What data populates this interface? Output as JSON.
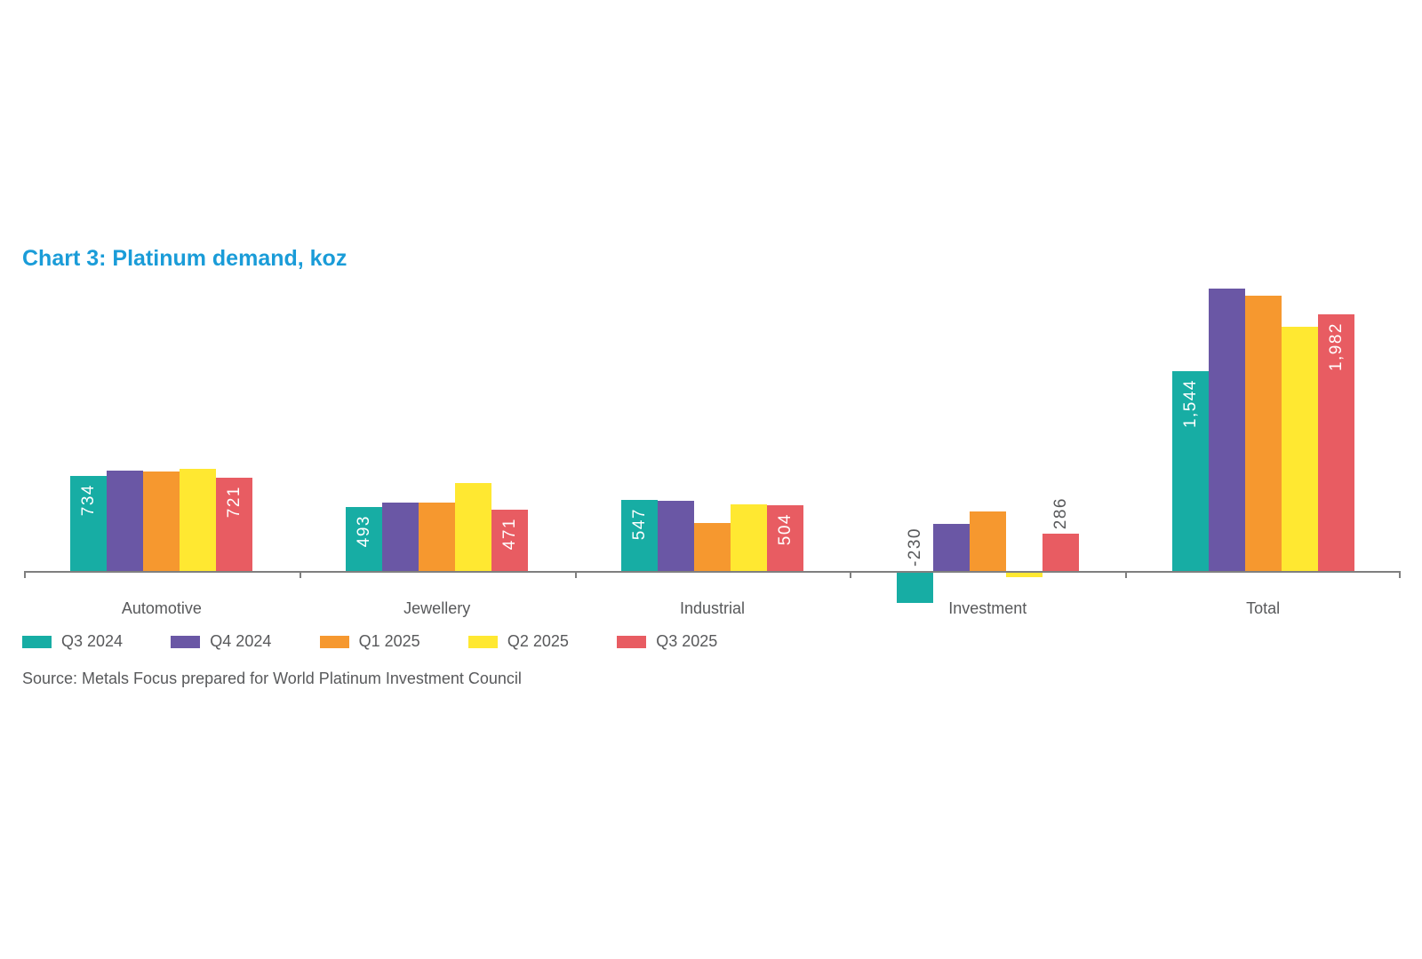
{
  "title": {
    "text": "Chart 3: Platinum demand, koz"
  },
  "source": "Source: Metals Focus prepared for World Platinum Investment Council",
  "colors": {
    "title": "#1A9CD8",
    "text": "#58595B",
    "axis": "#7F7F7F",
    "label_inside": "#FFFFFF",
    "label_outside": "#58595B"
  },
  "chart_data": {
    "type": "bar",
    "title": "Chart 3: Platinum demand, koz",
    "unit": "koz",
    "grid": false,
    "y_axis_shown": false,
    "legend_position": "bottom",
    "categories": [
      "Automotive",
      "Jewellery",
      "Industrial",
      "Investment",
      "Total"
    ],
    "series": [
      {
        "name": "Q3 2024",
        "color": "#17ADA4",
        "values": [
          734,
          493,
          547,
          -230,
          1544
        ]
      },
      {
        "name": "Q4 2024",
        "color": "#6A57A5",
        "values": [
          777,
          530,
          540,
          360,
          2180
        ]
      },
      {
        "name": "Q1 2025",
        "color": "#F6982F",
        "values": [
          770,
          525,
          370,
          460,
          2125
        ]
      },
      {
        "name": "Q2 2025",
        "color": "#FFE831",
        "values": [
          790,
          675,
          512,
          -35,
          1885
        ]
      },
      {
        "name": "Q3 2025",
        "color": "#E85C62",
        "values": [
          721,
          471,
          504,
          286,
          1982
        ]
      }
    ],
    "bar_labels": [
      {
        "series": 0,
        "category": 0,
        "text": "734",
        "placement": "inside"
      },
      {
        "series": 4,
        "category": 0,
        "text": "721",
        "placement": "inside"
      },
      {
        "series": 0,
        "category": 1,
        "text": "493",
        "placement": "inside"
      },
      {
        "series": 4,
        "category": 1,
        "text": "471",
        "placement": "inside"
      },
      {
        "series": 0,
        "category": 2,
        "text": "547",
        "placement": "inside"
      },
      {
        "series": 4,
        "category": 2,
        "text": "504",
        "placement": "inside"
      },
      {
        "series": 0,
        "category": 3,
        "text": "-230",
        "placement": "outside"
      },
      {
        "series": 4,
        "category": 3,
        "text": "286",
        "placement": "outside"
      },
      {
        "series": 0,
        "category": 4,
        "text": "1,544",
        "placement": "inside"
      },
      {
        "series": 4,
        "category": 4,
        "text": "1,982",
        "placement": "inside"
      }
    ],
    "note": "unlabeled bar values estimated from bar heights"
  }
}
